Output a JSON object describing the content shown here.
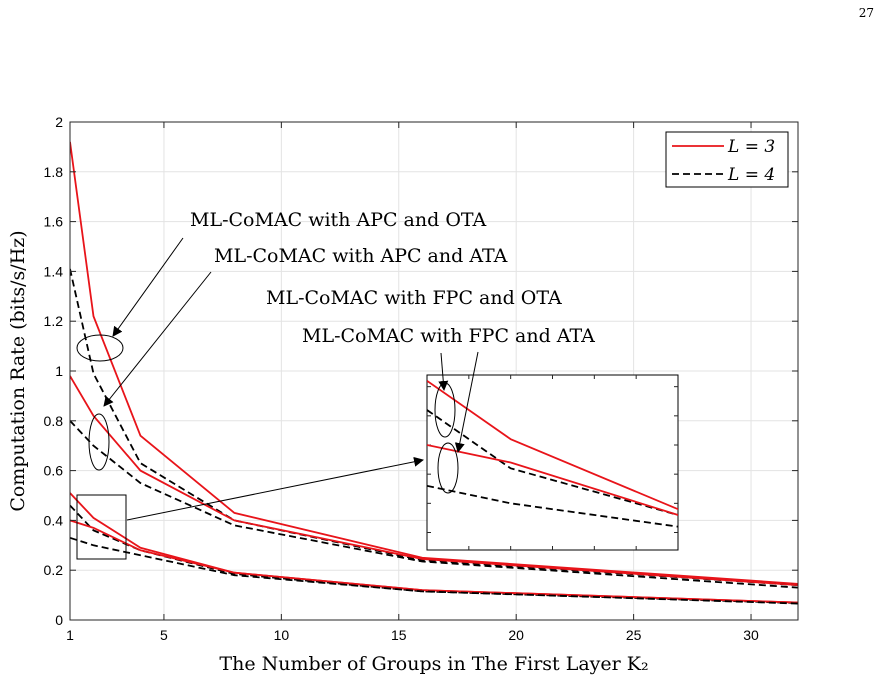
{
  "page_number": "27",
  "chart_data": {
    "type": "line",
    "xlabel": "The Number of Groups in The First Layer K₂",
    "ylabel": "Computation Rate (bits/s/Hz)",
    "xlim": [
      1,
      32
    ],
    "ylim": [
      0,
      2
    ],
    "x_ticks": [
      1,
      5,
      10,
      15,
      20,
      25,
      30
    ],
    "y_ticks": [
      0,
      0.2,
      0.4,
      0.6,
      0.8,
      1,
      1.2,
      1.4,
      1.6,
      1.8,
      2
    ],
    "y_tick_labels": [
      "0",
      "0.2",
      "0.4",
      "0.6",
      "0.8",
      "1",
      "1.2",
      "1.4",
      "1.6",
      "1.8",
      "2"
    ],
    "x_tick_labels": [
      "1",
      "5",
      "10",
      "15",
      "20",
      "25",
      "30"
    ],
    "grid": true,
    "legend_position": "top-right",
    "legend": [
      {
        "label": "L = 3",
        "color": "#e8141a",
        "dash": "solid"
      },
      {
        "label": "L = 4",
        "color": "#000000",
        "dash": "dashed"
      }
    ],
    "x": [
      1,
      2,
      4,
      8,
      16,
      32
    ],
    "series": [
      {
        "group": "ML-CoMAC with APC and OTA",
        "style": "L = 3",
        "values": [
          1.92,
          1.22,
          0.74,
          0.43,
          0.25,
          0.145
        ]
      },
      {
        "group": "ML-CoMAC with APC and OTA",
        "style": "L = 4",
        "values": [
          1.41,
          0.99,
          0.63,
          0.4,
          0.24,
          0.14
        ]
      },
      {
        "group": "ML-CoMAC with APC and ATA",
        "style": "L = 3",
        "values": [
          0.98,
          0.82,
          0.6,
          0.4,
          0.245,
          0.14
        ]
      },
      {
        "group": "ML-CoMAC with APC and ATA",
        "style": "L = 4",
        "values": [
          0.8,
          0.7,
          0.55,
          0.38,
          0.235,
          0.13
        ]
      },
      {
        "group": "ML-CoMAC with FPC and OTA",
        "style": "L = 3",
        "values": [
          0.51,
          0.41,
          0.29,
          0.19,
          0.12,
          0.07
        ]
      },
      {
        "group": "ML-CoMAC with FPC and OTA",
        "style": "L = 4",
        "values": [
          0.46,
          0.36,
          0.28,
          0.185,
          0.115,
          0.068
        ]
      },
      {
        "group": "ML-CoMAC with FPC and ATA",
        "style": "L = 3",
        "values": [
          0.4,
          0.37,
          0.28,
          0.19,
          0.12,
          0.07
        ]
      },
      {
        "group": "ML-CoMAC with FPC and ATA",
        "style": "L = 4",
        "values": [
          0.33,
          0.3,
          0.26,
          0.18,
          0.115,
          0.066
        ]
      }
    ],
    "annotations": [
      "ML-CoMAC with APC and OTA",
      "ML-CoMAC with APC and ATA",
      "ML-CoMAC with FPC and OTA",
      "ML-CoMAC with FPC and ATA"
    ],
    "inset": {
      "xlim": [
        1,
        4
      ],
      "ylim": [
        0.22,
        0.52
      ]
    }
  }
}
